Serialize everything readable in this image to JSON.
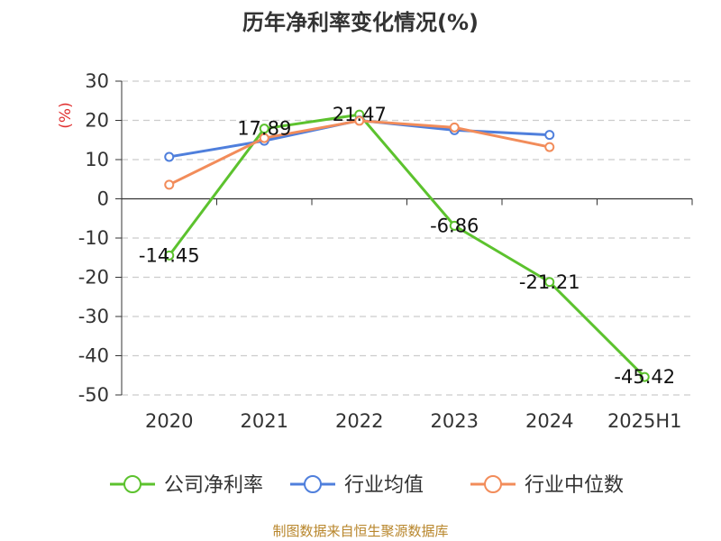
{
  "chart_data": {
    "type": "line",
    "title": "历年净利率变化情况(%)",
    "ylabel": "(%)",
    "categories": [
      "2020",
      "2021",
      "2022",
      "2023",
      "2024",
      "2025H1"
    ],
    "ylim": [
      -50,
      30
    ],
    "yticks": [
      30,
      20,
      10,
      0,
      -10,
      -20,
      -30,
      -40,
      -50
    ],
    "grid": true,
    "legend_position": "bottom",
    "series": [
      {
        "name": "公司净利率",
        "color": "#5cc22e",
        "values": [
          -14.45,
          17.89,
          21.47,
          -6.86,
          -21.21,
          -45.42
        ],
        "labels": [
          "-14.45",
          "17.89",
          "21.47",
          "-6.86",
          "-21.21",
          "-45.42"
        ]
      },
      {
        "name": "行业均值",
        "color": "#4f7fdc",
        "values": [
          10.7,
          14.8,
          20.0,
          17.5,
          16.3,
          null
        ]
      },
      {
        "name": "行业中位数",
        "color": "#f28c5a",
        "values": [
          3.6,
          15.5,
          19.9,
          18.2,
          13.2,
          null
        ]
      }
    ]
  },
  "footer": {
    "source": "制图数据来自恒生聚源数据库"
  }
}
